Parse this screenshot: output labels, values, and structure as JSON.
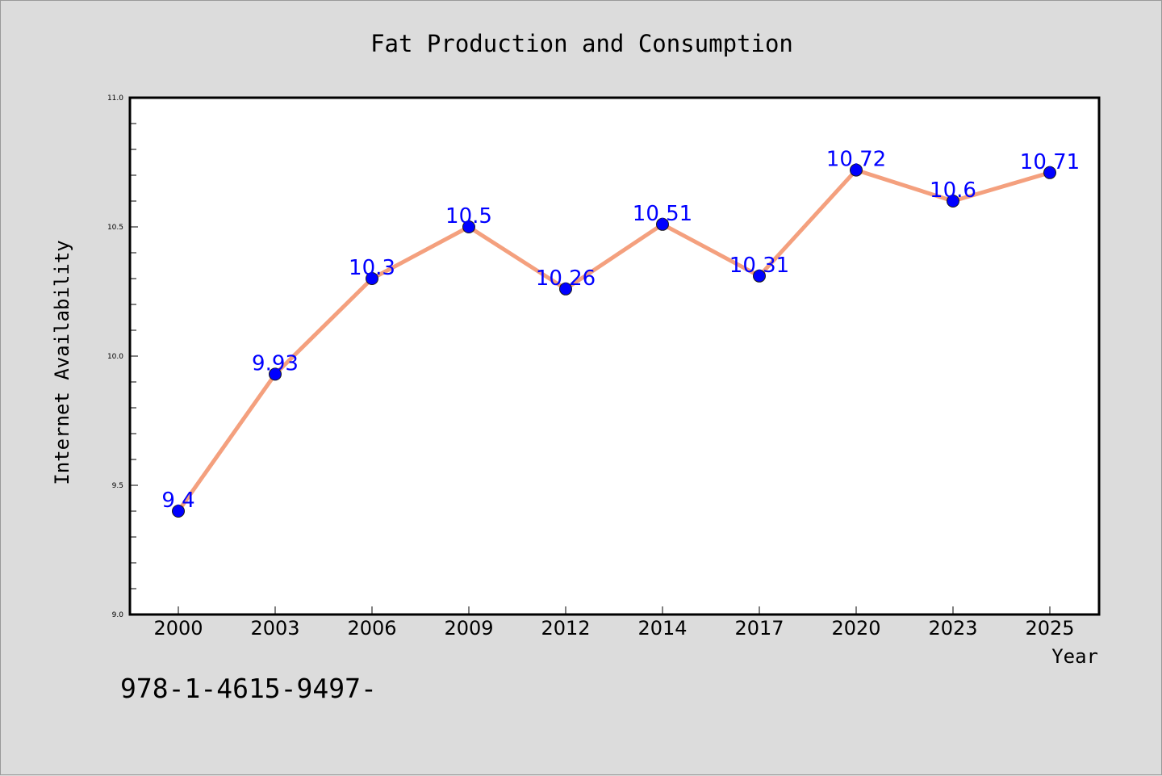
{
  "chart_data": {
    "type": "line",
    "title": "Fat Production and Consumption",
    "xlabel": "Year",
    "ylabel": "Internet Availability",
    "categories": [
      "2000",
      "2003",
      "2006",
      "2009",
      "2012",
      "2014",
      "2017",
      "2020",
      "2023",
      "2025"
    ],
    "series": [
      {
        "values": [
          9.4,
          9.93,
          10.3,
          10.5,
          10.26,
          10.51,
          10.31,
          10.72,
          10.6,
          10.71
        ],
        "line_color": "#f4a07e",
        "marker_color": "#0000ff"
      }
    ],
    "data_labels": [
      "9.4",
      "9.93",
      "10.3",
      "10.5",
      "10.26",
      "10.51",
      "10.31",
      "10.72",
      "10.6",
      "10.71"
    ],
    "ylim": [
      9.0,
      11.0
    ],
    "y_ticks": [
      "9.0",
      "9.5",
      "10.0",
      "10.5",
      "11.0"
    ],
    "grid": false,
    "label_color": "#0000ff",
    "background_color": "#dcdcdc",
    "plot_background_color": "#ffffff"
  },
  "footer": {
    "text": "978-1-4615-9497-"
  }
}
